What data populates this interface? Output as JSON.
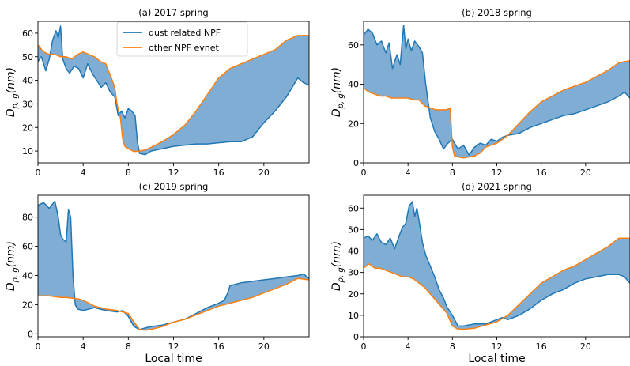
{
  "figure": {
    "colors": {
      "dust": "#1f77b4",
      "other": "#ff7f0e",
      "fill": "#7fadd4"
    },
    "legend": {
      "entries": [
        "dust related NPF",
        "other NPF evnet"
      ],
      "placement": "upper-center of panel (a)"
    },
    "shared_xlabel": "Local time",
    "ylabel_base": "D",
    "ylabel_sub": "p, g",
    "ylabel_unit": "(nm)"
  },
  "chart_data": [
    {
      "type": "line",
      "title": "(a) 2017 spring",
      "xlabel": "",
      "xlim": [
        0,
        24
      ],
      "ylim": [
        5,
        65
      ],
      "xticks": [
        0,
        4,
        8,
        12,
        16,
        20
      ],
      "yticks": [
        10,
        20,
        30,
        40,
        50,
        60
      ],
      "grid": false,
      "fill_between": true,
      "series": [
        {
          "name": "dust related NPF",
          "x": [
            0,
            0.3,
            0.7,
            1.0,
            1.3,
            1.6,
            1.8,
            2.0,
            2.2,
            2.5,
            2.8,
            3.2,
            3.6,
            4.0,
            4.4,
            4.8,
            5.2,
            5.6,
            6.0,
            6.4,
            6.8,
            7.1,
            7.4,
            7.7,
            8.0,
            8.3,
            8.6,
            8.8,
            9.0,
            9.5,
            10,
            11,
            12,
            13,
            14,
            15,
            16,
            17,
            18,
            19,
            20,
            21,
            22,
            22.5,
            23,
            23.5,
            24
          ],
          "y": [
            48,
            50,
            44,
            49,
            57,
            61,
            58,
            63,
            49,
            45,
            43,
            46,
            45,
            41,
            47,
            43,
            40,
            37,
            39,
            35,
            33,
            25,
            27,
            24,
            28,
            27,
            25,
            14,
            9,
            8.5,
            10,
            11,
            12,
            12.5,
            13,
            13,
            13.5,
            14,
            14,
            16,
            22,
            27,
            33,
            37,
            41,
            39,
            38
          ]
        },
        {
          "name": "other NPF evnet",
          "x": [
            0,
            0.5,
            1.0,
            1.5,
            2.0,
            2.5,
            3.0,
            3.5,
            4.0,
            4.5,
            5.0,
            5.5,
            6.0,
            6.5,
            6.8,
            7.0,
            7.3,
            7.5,
            7.7,
            8.0,
            8.5,
            9.0,
            9.5,
            10,
            11,
            12,
            13,
            14,
            15,
            16,
            17,
            18,
            19,
            20,
            21,
            22,
            23,
            24
          ],
          "y": [
            55,
            52,
            51,
            51,
            50,
            50,
            49,
            51,
            52,
            51,
            50,
            48,
            47,
            41,
            37,
            30,
            24,
            15,
            12,
            11,
            9.8,
            10,
            10.5,
            11.5,
            14,
            17,
            21,
            27,
            34,
            41,
            45,
            47,
            49,
            51,
            53,
            57,
            59,
            59
          ]
        }
      ]
    },
    {
      "type": "line",
      "title": "(b) 2018 spring",
      "xlabel": "",
      "xlim": [
        0,
        24
      ],
      "ylim": [
        0,
        72
      ],
      "xticks": [
        0,
        4,
        8,
        12,
        16,
        20
      ],
      "yticks": [
        0,
        20,
        40,
        60
      ],
      "grid": false,
      "fill_between": true,
      "series": [
        {
          "name": "dust related NPF",
          "x": [
            0,
            0.4,
            0.8,
            1.2,
            1.6,
            2.0,
            2.3,
            2.6,
            3.0,
            3.3,
            3.6,
            3.8,
            4.0,
            4.3,
            4.6,
            5.0,
            5.3,
            5.6,
            6.0,
            6.4,
            6.8,
            7.2,
            7.6,
            8.0,
            8.5,
            9.0,
            9.5,
            10,
            10.5,
            11,
            11.5,
            12,
            12.5,
            13,
            14,
            15,
            16,
            17,
            18,
            19,
            20,
            21,
            22,
            23,
            23.5,
            24
          ],
          "y": [
            65,
            68,
            66,
            60,
            62,
            56,
            61,
            48,
            55,
            50,
            70,
            58,
            63,
            57,
            62,
            59,
            56,
            40,
            23,
            16,
            12,
            7,
            10,
            12,
            7,
            9,
            4,
            8,
            10,
            9,
            12,
            11,
            13,
            14,
            15,
            18,
            20,
            22,
            24,
            25,
            27,
            29,
            31,
            34,
            36,
            33
          ]
        },
        {
          "name": "other NPF evnet",
          "x": [
            0,
            0.5,
            1.0,
            1.5,
            2.0,
            2.5,
            3.0,
            3.5,
            4.0,
            4.5,
            5.0,
            5.5,
            6.0,
            6.5,
            7.0,
            7.5,
            7.8,
            8.0,
            8.2,
            8.5,
            9.0,
            9.5,
            10,
            10.5,
            11,
            11.5,
            12,
            12.5,
            13,
            14,
            15,
            16,
            17,
            18,
            19,
            20,
            21,
            22,
            23,
            24
          ],
          "y": [
            38,
            36,
            35,
            34,
            34,
            33,
            33,
            33,
            33,
            32,
            32,
            29,
            28,
            27,
            27,
            27,
            28,
            8,
            3.5,
            3,
            2.5,
            3,
            3.5,
            5,
            8,
            9,
            10,
            12,
            14,
            20,
            26,
            31,
            34,
            37,
            39,
            41,
            44,
            47,
            51,
            52
          ]
        }
      ]
    },
    {
      "type": "line",
      "title": "(c) 2019 spring",
      "xlabel": "",
      "xlim": [
        0,
        24
      ],
      "ylim": [
        -2,
        95
      ],
      "xticks": [
        0,
        4,
        8,
        12,
        16,
        20
      ],
      "yticks": [
        0,
        20,
        40,
        60,
        80
      ],
      "grid": false,
      "fill_between": true,
      "series": [
        {
          "name": "dust related NPF",
          "x": [
            0,
            0.5,
            1.0,
            1.5,
            1.8,
            2.0,
            2.2,
            2.5,
            2.7,
            2.9,
            3.1,
            3.3,
            3.5,
            4,
            5,
            6,
            7,
            7.5,
            8,
            8.5,
            9,
            9.5,
            10,
            11,
            12,
            13,
            14,
            15,
            16,
            16.5,
            16.8,
            17,
            17.5,
            18,
            19,
            20,
            21,
            22,
            23,
            23.5,
            24
          ],
          "y": [
            88,
            90,
            86,
            91,
            80,
            68,
            65,
            63,
            85,
            80,
            40,
            20,
            17,
            16,
            18,
            16,
            15,
            16,
            12,
            5,
            3,
            4,
            5,
            6,
            8,
            10,
            14,
            18,
            21,
            23,
            28,
            33,
            34,
            35,
            36,
            37,
            38,
            39,
            40,
            41,
            38
          ]
        },
        {
          "name": "other NPF evnet",
          "x": [
            0,
            0.5,
            1.0,
            1.5,
            2.0,
            2.5,
            3.0,
            3.5,
            4.0,
            4.5,
            5.0,
            5.5,
            6,
            7,
            8,
            8.5,
            9,
            9.5,
            10,
            11,
            12,
            13,
            14,
            15,
            16,
            17,
            18,
            19,
            20,
            21,
            22,
            23,
            24
          ],
          "y": [
            26,
            26,
            26,
            25.5,
            25,
            25,
            24.5,
            24,
            23,
            21,
            19,
            18,
            17,
            16,
            14,
            8,
            3,
            2.5,
            3,
            5,
            8,
            10,
            13,
            16,
            19,
            21,
            23,
            25,
            28,
            31,
            34,
            38,
            37
          ]
        }
      ]
    },
    {
      "type": "line",
      "title": "(d) 2021 spring",
      "xlabel": "Local time",
      "xlim": [
        0,
        24
      ],
      "ylim": [
        0,
        66
      ],
      "xticks": [
        0,
        4,
        8,
        12,
        16,
        20
      ],
      "yticks": [
        0,
        10,
        20,
        30,
        40,
        50,
        60
      ],
      "grid": false,
      "fill_between": true,
      "series": [
        {
          "name": "dust related NPF",
          "x": [
            0,
            0.4,
            0.8,
            1.2,
            1.6,
            2.0,
            2.4,
            2.8,
            3.2,
            3.5,
            3.8,
            4.1,
            4.4,
            4.6,
            4.8,
            5.0,
            5.3,
            5.6,
            6.0,
            6.4,
            6.8,
            7.2,
            7.5,
            8.0,
            8.5,
            9,
            10,
            11,
            12,
            12.5,
            13,
            14,
            15,
            16,
            17,
            18,
            19,
            20,
            21,
            22,
            23,
            23.5,
            24
          ],
          "y": [
            46,
            47,
            45,
            48,
            44,
            43,
            46,
            41,
            47,
            51,
            53,
            61,
            63,
            56,
            60,
            54,
            44,
            38,
            33,
            28,
            22,
            18,
            14,
            10,
            5,
            5,
            6,
            6,
            8,
            9,
            8,
            10,
            13,
            17,
            20,
            22,
            25,
            27,
            28,
            29,
            29,
            28,
            25
          ]
        },
        {
          "name": "other NPF evnet",
          "x": [
            0,
            0.5,
            1.0,
            1.5,
            2.0,
            2.5,
            3.0,
            3.5,
            4.0,
            4.5,
            5.0,
            5.5,
            6.0,
            6.5,
            7.0,
            7.5,
            8.0,
            8.5,
            9,
            10,
            11,
            12,
            13,
            14,
            15,
            16,
            17,
            18,
            19,
            20,
            21,
            22,
            23,
            24
          ],
          "y": [
            32,
            34,
            32,
            32,
            31,
            30,
            29,
            28,
            28,
            27,
            25,
            23,
            20,
            17,
            14,
            11,
            5,
            3.5,
            3.5,
            4,
            5.5,
            7,
            10,
            15,
            20,
            25,
            28,
            31,
            33,
            36,
            39,
            42,
            46,
            46
          ]
        }
      ]
    }
  ]
}
